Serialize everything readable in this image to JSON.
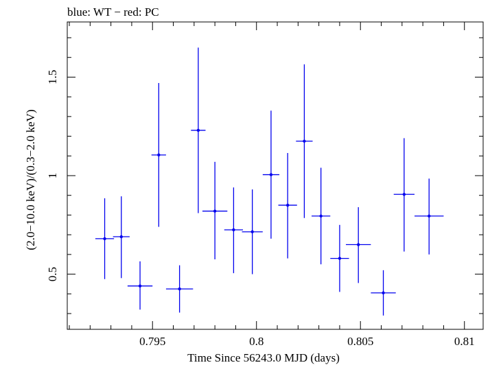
{
  "chart_data": {
    "type": "scatter",
    "title": "blue: WT − red: PC",
    "xlabel": "Time Since 56243.0 MJD (days)",
    "ylabel": "(2.0−10.0 keV)/(0.3−2.0 keV)",
    "xlim": [
      0.7909,
      0.8109
    ],
    "ylim": [
      0.22,
      1.78
    ],
    "xticks": [
      0.795,
      0.8,
      0.805,
      0.81
    ],
    "xtick_labels": [
      "0.795",
      "0.8",
      "0.805",
      "0.81"
    ],
    "yticks": [
      0.5,
      1,
      1.5
    ],
    "ytick_labels": [
      "0.5",
      "1",
      "1.5"
    ],
    "grid": false,
    "series": [
      {
        "color": "#0000ee",
        "points": [
          {
            "x": 0.7927,
            "xerr": 0.00045,
            "y": 0.68,
            "ylo": 0.475,
            "yhi": 0.885
          },
          {
            "x": 0.7935,
            "xerr": 0.0004,
            "y": 0.69,
            "ylo": 0.48,
            "yhi": 0.895
          },
          {
            "x": 0.7944,
            "xerr": 0.0006,
            "y": 0.44,
            "ylo": 0.32,
            "yhi": 0.565
          },
          {
            "x": 0.7953,
            "xerr": 0.00035,
            "y": 1.105,
            "ylo": 0.74,
            "yhi": 1.47
          },
          {
            "x": 0.7963,
            "xerr": 0.00065,
            "y": 0.425,
            "ylo": 0.305,
            "yhi": 0.545
          },
          {
            "x": 0.7972,
            "xerr": 0.00035,
            "y": 1.23,
            "ylo": 0.81,
            "yhi": 1.65
          },
          {
            "x": 0.798,
            "xerr": 0.0006,
            "y": 0.82,
            "ylo": 0.575,
            "yhi": 1.07
          },
          {
            "x": 0.7989,
            "xerr": 0.00045,
            "y": 0.725,
            "ylo": 0.505,
            "yhi": 0.94
          },
          {
            "x": 0.7998,
            "xerr": 0.0005,
            "y": 0.715,
            "ylo": 0.5,
            "yhi": 0.93
          },
          {
            "x": 0.8007,
            "xerr": 0.0004,
            "y": 1.005,
            "ylo": 0.68,
            "yhi": 1.33
          },
          {
            "x": 0.8015,
            "xerr": 0.00045,
            "y": 0.85,
            "ylo": 0.58,
            "yhi": 1.115
          },
          {
            "x": 0.8023,
            "xerr": 0.0004,
            "y": 1.175,
            "ylo": 0.785,
            "yhi": 1.565
          },
          {
            "x": 0.8031,
            "xerr": 0.00045,
            "y": 0.795,
            "ylo": 0.55,
            "yhi": 1.04
          },
          {
            "x": 0.804,
            "xerr": 0.00045,
            "y": 0.58,
            "ylo": 0.41,
            "yhi": 0.75
          },
          {
            "x": 0.8049,
            "xerr": 0.0006,
            "y": 0.65,
            "ylo": 0.455,
            "yhi": 0.84
          },
          {
            "x": 0.8061,
            "xerr": 0.0006,
            "y": 0.405,
            "ylo": 0.29,
            "yhi": 0.52
          },
          {
            "x": 0.8071,
            "xerr": 0.0005,
            "y": 0.905,
            "ylo": 0.615,
            "yhi": 1.19
          },
          {
            "x": 0.8083,
            "xerr": 0.0007,
            "y": 0.795,
            "ylo": 0.6,
            "yhi": 0.985
          }
        ]
      }
    ]
  }
}
